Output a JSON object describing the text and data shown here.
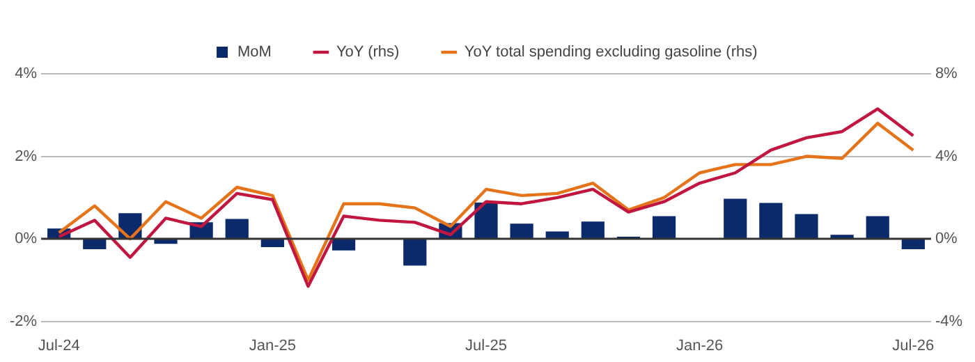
{
  "chart_data": {
    "type": "bar",
    "categories": [
      "Jul-24",
      null,
      null,
      null,
      null,
      null,
      "Jan-25",
      null,
      null,
      null,
      null,
      null,
      "Jul-25",
      null,
      null,
      null,
      null,
      null,
      "Jan-26",
      null,
      null,
      null,
      null,
      null,
      "Jul-26"
    ],
    "series": [
      {
        "name": "MoM",
        "color": "#0b2a6b",
        "values": [
          0.25,
          -0.25,
          0.62,
          -0.12,
          0.4,
          0.48,
          -0.2,
          null,
          -0.28,
          null,
          -0.65,
          0.38,
          0.88,
          0.37,
          0.18,
          0.42,
          0.05,
          0.55,
          0.02,
          0.97,
          0.87,
          0.6,
          0.1,
          0.55,
          -0.25
        ]
      },
      {
        "name": "YoY (rhs)",
        "type": "line",
        "axis": "y2",
        "color": "#c0163f",
        "values": [
          0.1,
          0.9,
          -0.9,
          1.0,
          0.6,
          2.2,
          1.9,
          -2.3,
          1.1,
          0.9,
          0.8,
          0.2,
          1.8,
          1.7,
          2.0,
          2.4,
          1.3,
          1.8,
          2.7,
          3.2,
          4.3,
          4.9,
          5.2,
          6.3,
          5.0
        ]
      },
      {
        "name": "YoY total spending excluding gasoline (rhs)",
        "type": "line",
        "axis": "y2",
        "color": "#e5731a",
        "values": [
          0.3,
          1.6,
          0.0,
          1.8,
          1.0,
          2.5,
          2.1,
          -2.0,
          1.7,
          1.7,
          1.5,
          0.6,
          2.4,
          2.1,
          2.2,
          2.7,
          1.4,
          2.0,
          3.2,
          3.6,
          3.6,
          4.0,
          3.9,
          5.6,
          4.3
        ]
      }
    ],
    "ylim": [
      -2,
      4
    ],
    "yticks": [
      {
        "value": -2,
        "label": "-2%"
      },
      {
        "value": 0,
        "label": "0%"
      },
      {
        "value": 2,
        "label": "2%"
      },
      {
        "value": 4,
        "label": "4%"
      }
    ],
    "y2lim": [
      -4,
      8
    ],
    "y2ticks": [
      {
        "value": -4,
        "label": "-4%"
      },
      {
        "value": 0,
        "label": "0%"
      },
      {
        "value": 4,
        "label": "4%"
      },
      {
        "value": 8,
        "label": "8%"
      }
    ],
    "grid": "y",
    "legend": "top",
    "line_style": "solid",
    "marker": "none"
  }
}
